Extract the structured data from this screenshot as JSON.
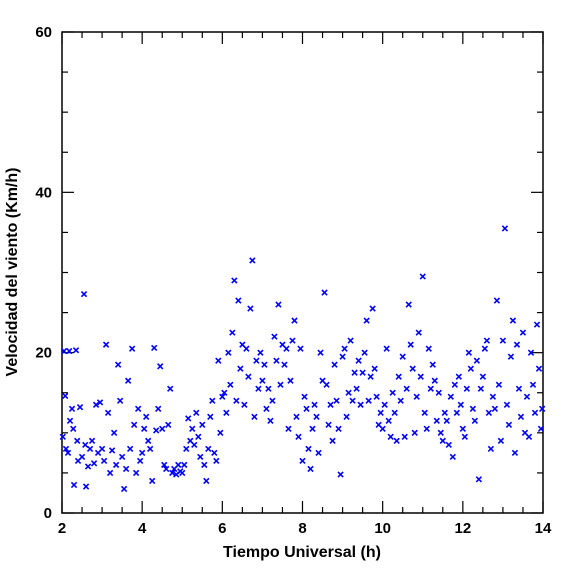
{
  "chart_data": {
    "type": "scatter",
    "title": "",
    "xlabel": "Tiempo Universal (h)",
    "ylabel": "Velocidad del viento (Km/h)",
    "xlim": [
      2,
      14
    ],
    "ylim": [
      0,
      60
    ],
    "x_ticks": [
      2,
      4,
      6,
      8,
      10,
      12,
      14
    ],
    "x_tick_labels": [
      "2",
      "4",
      "6",
      "8",
      "10",
      "12",
      "14"
    ],
    "y_ticks": [
      0,
      20,
      40,
      60
    ],
    "y_tick_labels": [
      "0",
      "20",
      "40",
      "60"
    ],
    "x_minor_step": 0.5,
    "y_minor_step": 5,
    "marker": "x",
    "color": "#0000ff",
    "grid": false,
    "series": [
      {
        "name": "",
        "points": [
          [
            2.02,
            9.5
          ],
          [
            2.05,
            20.2
          ],
          [
            2.08,
            14.6
          ],
          [
            2.1,
            8.0
          ],
          [
            2.15,
            7.5
          ],
          [
            2.18,
            20.2
          ],
          [
            2.2,
            11.5
          ],
          [
            2.25,
            13.0
          ],
          [
            2.28,
            10.5
          ],
          [
            2.3,
            3.5
          ],
          [
            2.35,
            20.3
          ],
          [
            2.38,
            9.0
          ],
          [
            2.4,
            6.5
          ],
          [
            2.45,
            13.2
          ],
          [
            2.5,
            7.0
          ],
          [
            2.55,
            27.3
          ],
          [
            2.58,
            8.5
          ],
          [
            2.6,
            3.3
          ],
          [
            2.65,
            5.8
          ],
          [
            2.7,
            8.0
          ],
          [
            2.75,
            9.0
          ],
          [
            2.8,
            6.2
          ],
          [
            2.85,
            13.5
          ],
          [
            2.9,
            7.5
          ],
          [
            2.95,
            13.8
          ],
          [
            3.0,
            8.0
          ],
          [
            3.05,
            6.5
          ],
          [
            3.1,
            21.0
          ],
          [
            3.15,
            12.5
          ],
          [
            3.2,
            5.0
          ],
          [
            3.25,
            7.8
          ],
          [
            3.3,
            10.0
          ],
          [
            3.35,
            6.0
          ],
          [
            3.4,
            18.5
          ],
          [
            3.45,
            14.0
          ],
          [
            3.5,
            7.0
          ],
          [
            3.55,
            3.0
          ],
          [
            3.6,
            5.5
          ],
          [
            3.65,
            16.5
          ],
          [
            3.7,
            8.0
          ],
          [
            3.75,
            20.5
          ],
          [
            3.8,
            11.0
          ],
          [
            3.85,
            5.0
          ],
          [
            3.9,
            13.0
          ],
          [
            3.95,
            6.5
          ],
          [
            4.0,
            7.5
          ],
          [
            4.05,
            10.5
          ],
          [
            4.1,
            12.0
          ],
          [
            4.15,
            9.0
          ],
          [
            4.2,
            8.0
          ],
          [
            4.25,
            4.0
          ],
          [
            4.3,
            20.6
          ],
          [
            4.35,
            10.3
          ],
          [
            4.4,
            13.0
          ],
          [
            4.45,
            18.3
          ],
          [
            4.5,
            10.5
          ],
          [
            4.55,
            6.0
          ],
          [
            4.6,
            5.5
          ],
          [
            4.65,
            11.0
          ],
          [
            4.7,
            15.5
          ],
          [
            4.75,
            5.0
          ],
          [
            4.8,
            5.5
          ],
          [
            4.85,
            4.8
          ],
          [
            4.9,
            6.0
          ],
          [
            4.95,
            5.2
          ],
          [
            5.0,
            5.0
          ],
          [
            5.05,
            6.0
          ],
          [
            5.1,
            8.0
          ],
          [
            5.15,
            11.8
          ],
          [
            5.2,
            9.0
          ],
          [
            5.25,
            10.5
          ],
          [
            5.3,
            8.5
          ],
          [
            5.35,
            12.5
          ],
          [
            5.4,
            9.5
          ],
          [
            5.45,
            7.0
          ],
          [
            5.5,
            11.0
          ],
          [
            5.55,
            6.0
          ],
          [
            5.6,
            4.0
          ],
          [
            5.65,
            8.0
          ],
          [
            5.7,
            12.0
          ],
          [
            5.75,
            14.0
          ],
          [
            5.8,
            7.5
          ],
          [
            5.85,
            6.5
          ],
          [
            5.9,
            19.0
          ],
          [
            5.95,
            10.0
          ],
          [
            6.0,
            14.5
          ],
          [
            6.05,
            15.0
          ],
          [
            6.1,
            12.5
          ],
          [
            6.15,
            20.0
          ],
          [
            6.2,
            16.0
          ],
          [
            6.25,
            22.5
          ],
          [
            6.3,
            29.0
          ],
          [
            6.35,
            14.0
          ],
          [
            6.4,
            26.5
          ],
          [
            6.45,
            18.0
          ],
          [
            6.5,
            21.0
          ],
          [
            6.55,
            13.5
          ],
          [
            6.6,
            20.5
          ],
          [
            6.65,
            17.0
          ],
          [
            6.7,
            25.5
          ],
          [
            6.75,
            31.5
          ],
          [
            6.8,
            12.0
          ],
          [
            6.85,
            19.0
          ],
          [
            6.9,
            15.5
          ],
          [
            6.95,
            20.0
          ],
          [
            7.0,
            16.5
          ],
          [
            7.05,
            18.5
          ],
          [
            7.1,
            13.0
          ],
          [
            7.15,
            15.5
          ],
          [
            7.2,
            11.5
          ],
          [
            7.25,
            14.0
          ],
          [
            7.3,
            22.0
          ],
          [
            7.35,
            19.0
          ],
          [
            7.4,
            26.0
          ],
          [
            7.45,
            16.0
          ],
          [
            7.5,
            21.0
          ],
          [
            7.55,
            18.5
          ],
          [
            7.6,
            20.5
          ],
          [
            7.65,
            10.5
          ],
          [
            7.7,
            16.5
          ],
          [
            7.75,
            21.5
          ],
          [
            7.8,
            24.0
          ],
          [
            7.85,
            12.0
          ],
          [
            7.9,
            9.5
          ],
          [
            7.95,
            20.5
          ],
          [
            8.0,
            6.5
          ],
          [
            8.05,
            14.5
          ],
          [
            8.1,
            13.0
          ],
          [
            8.15,
            8.0
          ],
          [
            8.2,
            5.5
          ],
          [
            8.25,
            10.5
          ],
          [
            8.3,
            13.5
          ],
          [
            8.35,
            12.0
          ],
          [
            8.4,
            7.5
          ],
          [
            8.45,
            20.0
          ],
          [
            8.5,
            16.5
          ],
          [
            8.55,
            27.5
          ],
          [
            8.6,
            16.0
          ],
          [
            8.65,
            11.0
          ],
          [
            8.7,
            13.5
          ],
          [
            8.75,
            9.0
          ],
          [
            8.8,
            18.5
          ],
          [
            8.85,
            14.0
          ],
          [
            8.9,
            10.5
          ],
          [
            8.95,
            4.8
          ],
          [
            9.0,
            19.5
          ],
          [
            9.05,
            20.5
          ],
          [
            9.1,
            12.0
          ],
          [
            9.15,
            15.0
          ],
          [
            9.2,
            21.5
          ],
          [
            9.25,
            14.0
          ],
          [
            9.3,
            17.5
          ],
          [
            9.35,
            15.5
          ],
          [
            9.4,
            19.0
          ],
          [
            9.45,
            13.5
          ],
          [
            9.5,
            17.5
          ],
          [
            9.55,
            20.0
          ],
          [
            9.6,
            24.0
          ],
          [
            9.65,
            14.0
          ],
          [
            9.7,
            17.0
          ],
          [
            9.75,
            25.5
          ],
          [
            9.8,
            18.0
          ],
          [
            9.85,
            14.5
          ],
          [
            9.9,
            11.0
          ],
          [
            9.95,
            12.5
          ],
          [
            10.0,
            10.5
          ],
          [
            10.05,
            13.5
          ],
          [
            10.1,
            20.5
          ],
          [
            10.15,
            11.5
          ],
          [
            10.2,
            9.5
          ],
          [
            10.25,
            15.0
          ],
          [
            10.3,
            12.5
          ],
          [
            10.35,
            9.0
          ],
          [
            10.4,
            17.0
          ],
          [
            10.45,
            14.0
          ],
          [
            10.5,
            19.5
          ],
          [
            10.55,
            9.5
          ],
          [
            10.6,
            15.5
          ],
          [
            10.65,
            26.0
          ],
          [
            10.7,
            21.0
          ],
          [
            10.75,
            18.0
          ],
          [
            10.8,
            10.0
          ],
          [
            10.85,
            14.5
          ],
          [
            10.9,
            22.5
          ],
          [
            10.95,
            17.0
          ],
          [
            11.0,
            29.5
          ],
          [
            11.05,
            12.5
          ],
          [
            11.1,
            10.5
          ],
          [
            11.15,
            20.5
          ],
          [
            11.2,
            15.5
          ],
          [
            11.25,
            18.5
          ],
          [
            11.3,
            16.5
          ],
          [
            11.35,
            11.5
          ],
          [
            11.4,
            15.0
          ],
          [
            11.45,
            10.0
          ],
          [
            11.5,
            9.0
          ],
          [
            11.55,
            12.5
          ],
          [
            11.6,
            11.5
          ],
          [
            11.65,
            8.5
          ],
          [
            11.7,
            14.5
          ],
          [
            11.75,
            7.0
          ],
          [
            11.8,
            16.0
          ],
          [
            11.85,
            12.5
          ],
          [
            11.9,
            17.0
          ],
          [
            11.95,
            13.5
          ],
          [
            12.0,
            10.5
          ],
          [
            12.05,
            9.5
          ],
          [
            12.1,
            15.5
          ],
          [
            12.15,
            20.0
          ],
          [
            12.2,
            18.0
          ],
          [
            12.25,
            13.0
          ],
          [
            12.3,
            11.5
          ],
          [
            12.35,
            19.0
          ],
          [
            12.4,
            4.2
          ],
          [
            12.45,
            15.5
          ],
          [
            12.5,
            17.0
          ],
          [
            12.55,
            20.5
          ],
          [
            12.6,
            21.5
          ],
          [
            12.65,
            12.5
          ],
          [
            12.7,
            8.0
          ],
          [
            12.75,
            14.5
          ],
          [
            12.8,
            13.0
          ],
          [
            12.85,
            26.5
          ],
          [
            12.9,
            16.0
          ],
          [
            12.95,
            9.0
          ],
          [
            13.0,
            21.5
          ],
          [
            13.05,
            35.5
          ],
          [
            13.1,
            13.5
          ],
          [
            13.15,
            11.0
          ],
          [
            13.2,
            19.5
          ],
          [
            13.25,
            24.0
          ],
          [
            13.3,
            7.5
          ],
          [
            13.35,
            21.0
          ],
          [
            13.4,
            15.5
          ],
          [
            13.45,
            12.0
          ],
          [
            13.5,
            22.5
          ],
          [
            13.55,
            10.0
          ],
          [
            13.6,
            14.5
          ],
          [
            13.65,
            9.5
          ],
          [
            13.7,
            20.0
          ],
          [
            13.75,
            16.0
          ],
          [
            13.8,
            12.5
          ],
          [
            13.85,
            23.5
          ],
          [
            13.9,
            18.0
          ],
          [
            13.95,
            10.5
          ],
          [
            13.98,
            13.0
          ]
        ]
      }
    ]
  }
}
